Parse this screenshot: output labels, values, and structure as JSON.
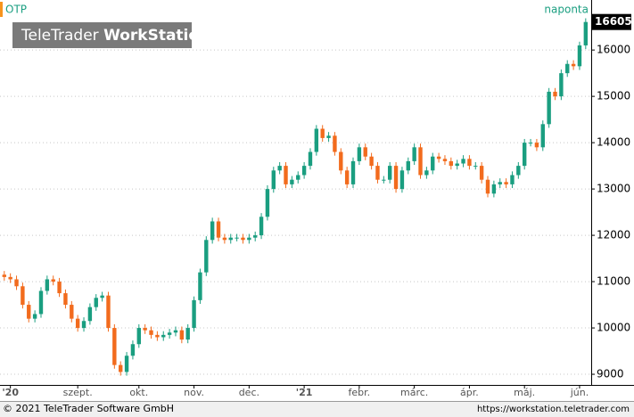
{
  "chart_data": {
    "type": "candlestick",
    "title": "OTP",
    "subtitle": "naponta",
    "logo": [
      "TeleTrader",
      "WorkStation"
    ],
    "footer_left": "© 2021 TeleTrader Software GmbH",
    "footer_right": "https://workstation.teletrader.com",
    "up_color": "#1a9e80",
    "down_color": "#f26b1d",
    "grid": true,
    "ylim": [
      8770,
      17080
    ],
    "yticks": [
      9000,
      10000,
      11000,
      12000,
      13000,
      14000,
      15000,
      16000
    ],
    "xlim": [
      -0.7,
      95.9
    ],
    "xticks": [
      {
        "value": 1,
        "label": "'20"
      },
      {
        "value": 12,
        "label": "szept."
      },
      {
        "value": 22,
        "label": "okt."
      },
      {
        "value": 31,
        "label": "nov."
      },
      {
        "value": 40,
        "label": "dec."
      },
      {
        "value": 49,
        "label": "'21"
      },
      {
        "value": 58,
        "label": "febr."
      },
      {
        "value": 67,
        "label": "márc."
      },
      {
        "value": 76,
        "label": "ápr."
      },
      {
        "value": 85,
        "label": "máj."
      },
      {
        "value": 94,
        "label": "jún."
      }
    ],
    "open": [
      11150,
      11100,
      11050,
      10900,
      10500,
      10200,
      10300,
      10800,
      11050,
      11000,
      10750,
      10500,
      10200,
      10000,
      10150,
      10450,
      10650,
      10700,
      10000,
      9200,
      9050,
      9400,
      9650,
      10000,
      9950,
      9850,
      9800,
      9850,
      9900,
      9950,
      9750,
      10000,
      10600,
      11200,
      11900,
      12300,
      11950,
      11900,
      11950,
      11950,
      11900,
      11950,
      12000,
      12400,
      13000,
      13400,
      13500,
      13100,
      13200,
      13300,
      13500,
      13800,
      14300,
      14100,
      14150,
      13800,
      13400,
      13100,
      13600,
      13900,
      13700,
      13500,
      13200,
      13200,
      13500,
      13000,
      13400,
      13600,
      13900,
      13300,
      13400,
      13700,
      13650,
      13600,
      13500,
      13550,
      13650,
      13500,
      13500,
      13200,
      12900,
      13100,
      13150,
      13100,
      13300,
      13500,
      14000,
      14000,
      13900,
      14400,
      15100,
      15000,
      15500,
      15700,
      15650,
      16100
    ],
    "high": [
      11230,
      11180,
      11130,
      10980,
      10580,
      10380,
      10880,
      11130,
      11130,
      11080,
      10830,
      10580,
      10280,
      10230,
      10530,
      10730,
      10780,
      10780,
      10080,
      9280,
      9480,
      9730,
      10080,
      10080,
      10030,
      9930,
      9930,
      9980,
      10030,
      10030,
      10080,
      10680,
      11280,
      11980,
      12380,
      12380,
      12030,
      12030,
      12030,
      12030,
      12030,
      12080,
      12480,
      13080,
      13480,
      13580,
      13580,
      13280,
      13380,
      13580,
      13880,
      14380,
      14380,
      14230,
      14230,
      13880,
      13480,
      13680,
      13980,
      13980,
      13780,
      13580,
      13280,
      13580,
      13580,
      13480,
      13680,
      13980,
      13980,
      13480,
      13780,
      13780,
      13730,
      13680,
      13630,
      13730,
      13730,
      13580,
      13580,
      13280,
      13180,
      13230,
      13230,
      13380,
      13580,
      14080,
      14080,
      14080,
      14480,
      15180,
      15180,
      15580,
      15780,
      15780,
      16180,
      16685
    ],
    "low": [
      11020,
      10970,
      10820,
      10420,
      10120,
      10120,
      10220,
      10720,
      10920,
      10670,
      10420,
      10120,
      9920,
      9920,
      10070,
      10370,
      10570,
      9920,
      9120,
      8970,
      8970,
      9320,
      9570,
      9870,
      9770,
      9720,
      9720,
      9770,
      9820,
      9670,
      9670,
      9920,
      10520,
      11120,
      11820,
      11870,
      11820,
      11820,
      11870,
      11820,
      11820,
      11870,
      11920,
      12320,
      12920,
      13320,
      13020,
      13020,
      13120,
      13220,
      13420,
      13720,
      14020,
      14020,
      13720,
      13320,
      13020,
      13020,
      13520,
      13620,
      13420,
      13120,
      13120,
      13120,
      12920,
      12920,
      13320,
      13520,
      13220,
      13220,
      13320,
      13570,
      13520,
      13420,
      13420,
      13470,
      13420,
      13420,
      13120,
      12820,
      12820,
      13020,
      13020,
      13020,
      13220,
      13420,
      13920,
      13820,
      13820,
      14320,
      14920,
      14920,
      15420,
      15570,
      15570,
      16020
    ],
    "close": [
      11100,
      11050,
      10900,
      10500,
      10200,
      10300,
      10800,
      11050,
      11000,
      10750,
      10500,
      10200,
      10000,
      10150,
      10450,
      10650,
      10700,
      10000,
      9200,
      9050,
      9400,
      9650,
      10000,
      9950,
      9850,
      9800,
      9850,
      9900,
      9950,
      9750,
      10000,
      10600,
      11200,
      11900,
      12300,
      11950,
      11900,
      11950,
      11950,
      11900,
      11950,
      12000,
      12400,
      13000,
      13400,
      13500,
      13100,
      13200,
      13300,
      13500,
      13800,
      14300,
      14100,
      14150,
      13800,
      13400,
      13100,
      13600,
      13900,
      13700,
      13500,
      13200,
      13200,
      13500,
      13000,
      13400,
      13600,
      13900,
      13300,
      13400,
      13700,
      13650,
      13600,
      13500,
      13550,
      13650,
      13500,
      13500,
      13200,
      12900,
      13100,
      13150,
      13100,
      13300,
      13500,
      14000,
      14000,
      13900,
      14400,
      15100,
      15000,
      15500,
      15700,
      15650,
      16100,
      16605
    ]
  }
}
